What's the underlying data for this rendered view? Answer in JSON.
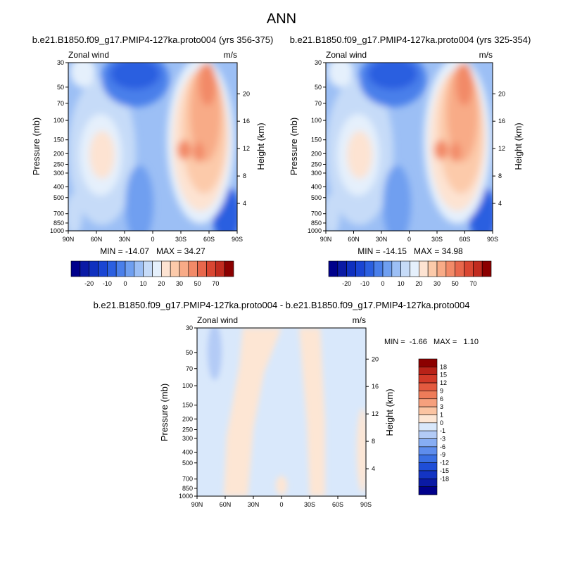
{
  "figure_title": "ANN",
  "colors": {
    "full_scale": [
      "#00008b",
      "#0a1aa5",
      "#0f30bf",
      "#1a45d3",
      "#2b5fe0",
      "#4a7fea",
      "#6f9ff0",
      "#9cbff5",
      "#c6dbf8",
      "#e5f0fc",
      "#fde3d2",
      "#fccaaa",
      "#f8ab87",
      "#f28a68",
      "#e8674c",
      "#d94632",
      "#c12b1f",
      "#8b0000"
    ],
    "diff_scale": [
      "#00008b",
      "#0a1aa5",
      "#1334c3",
      "#1f4ed7",
      "#3a6fe3",
      "#5e8ded",
      "#87adf3",
      "#b3cbf6",
      "#d9e8fb",
      "#fde6d4",
      "#fbc4a2",
      "#f6a07d",
      "#ee7c59",
      "#e35a3f",
      "#d23a28",
      "#b82218",
      "#8b0000"
    ]
  },
  "chart_data": [
    {
      "type": "heatmap",
      "title": "b.e21.B1850.f09_g17.PMIP4-127ka.proto004 (yrs 356-375)",
      "left_label": "Zonal wind",
      "right_label": "m/s",
      "xlabel": "",
      "ylabel": "Pressure (mb)",
      "y2label": "Height (km)",
      "x_ticks": [
        "90N",
        "60N",
        "30N",
        "0",
        "30S",
        "60S",
        "90S"
      ],
      "x_range": [
        90,
        -90
      ],
      "y_ticks": [
        "30",
        "50",
        "70",
        "100",
        "150",
        "200",
        "250",
        "300",
        "400",
        "500",
        "700",
        "850",
        "1000"
      ],
      "y_tick_values": [
        30,
        50,
        70,
        100,
        150,
        200,
        250,
        300,
        400,
        500,
        700,
        850,
        1000
      ],
      "y_range": [
        30,
        1000
      ],
      "y2_ticks": [
        "4",
        "8",
        "12",
        "16",
        "20"
      ],
      "stats": "MIN = -14.07   MAX = 34.27",
      "min": -14.07,
      "max": 34.27,
      "colorbar_levels": [
        "-20",
        "-10",
        "0",
        "10",
        "20",
        "30",
        "50",
        "70"
      ]
    },
    {
      "type": "heatmap",
      "title": "b.e21.B1850.f09_g17.PMIP4-127ka.proto004 (yrs 325-354)",
      "left_label": "Zonal wind",
      "right_label": "m/s",
      "xlabel": "",
      "ylabel": "Pressure (mb)",
      "y2label": "Height (km)",
      "x_ticks": [
        "90N",
        "60N",
        "30N",
        "0",
        "30S",
        "60S",
        "90S"
      ],
      "x_range": [
        90,
        -90
      ],
      "y_ticks": [
        "30",
        "50",
        "70",
        "100",
        "150",
        "200",
        "250",
        "300",
        "400",
        "500",
        "700",
        "850",
        "1000"
      ],
      "y_tick_values": [
        30,
        50,
        70,
        100,
        150,
        200,
        250,
        300,
        400,
        500,
        700,
        850,
        1000
      ],
      "y_range": [
        30,
        1000
      ],
      "y2_ticks": [
        "4",
        "8",
        "12",
        "16",
        "20"
      ],
      "stats": "MIN = -14.15   MAX = 34.98",
      "min": -14.15,
      "max": 34.98,
      "colorbar_levels": [
        "-20",
        "-10",
        "0",
        "10",
        "20",
        "30",
        "50",
        "70"
      ]
    },
    {
      "type": "heatmap",
      "title": "b.e21.B1850.f09_g17.PMIP4-127ka.proto004 - b.e21.B1850.f09_g17.PMIP4-127ka.proto004",
      "left_label": "Zonal wind",
      "right_label": "m/s",
      "xlabel": "",
      "ylabel": "Pressure (mb)",
      "y2label": "Height (km)",
      "x_ticks": [
        "90N",
        "60N",
        "30N",
        "0",
        "30S",
        "60S",
        "90S"
      ],
      "x_range": [
        90,
        -90
      ],
      "y_ticks": [
        "30",
        "50",
        "70",
        "100",
        "150",
        "200",
        "250",
        "300",
        "400",
        "500",
        "700",
        "850",
        "1000"
      ],
      "y_tick_values": [
        30,
        50,
        70,
        100,
        150,
        200,
        250,
        300,
        400,
        500,
        700,
        850,
        1000
      ],
      "y_range": [
        30,
        1000
      ],
      "y2_ticks": [
        "4",
        "8",
        "12",
        "16",
        "20"
      ],
      "stats": "MIN =  -1.66   MAX =   1.10",
      "min": -1.66,
      "max": 1.1,
      "colorbar_levels": [
        "18",
        "15",
        "12",
        "9",
        "6",
        "3",
        "1",
        "0",
        "-1",
        "-3",
        "-6",
        "-9",
        "-12",
        "-15",
        "-18"
      ]
    }
  ]
}
